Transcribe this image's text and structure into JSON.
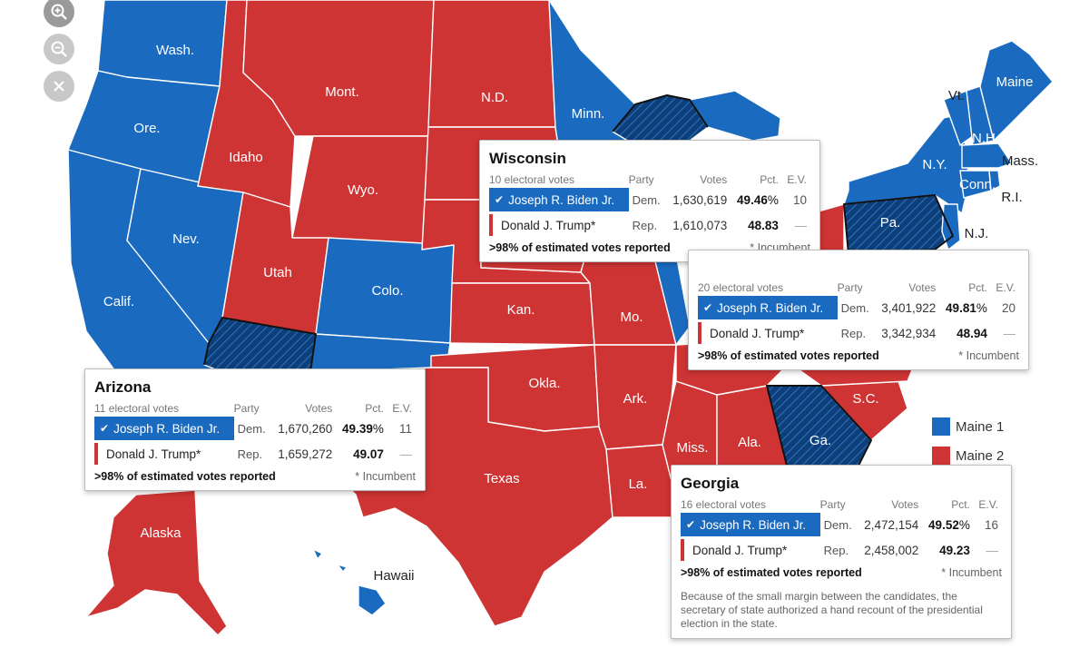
{
  "map": {
    "colors": {
      "dem": "#1a6bbf",
      "rep": "#cf3434",
      "flipped_dem": "#0d3f7a",
      "label": "#ffffff"
    },
    "state_labels": [
      "Wash.",
      "Ore.",
      "Calif.",
      "Nev.",
      "Idaho",
      "Mont.",
      "Wyo.",
      "Utah",
      "Colo.",
      "N.D.",
      "Minn.",
      "Kan.",
      "Mo.",
      "Okla.",
      "Ark.",
      "Texas",
      "La.",
      "Miss.",
      "Ala.",
      "Ga.",
      "S.C.",
      "Alaska",
      "Hawaii",
      "Pa.",
      "N.Y.",
      "Vt.",
      "Maine",
      "N.H.",
      "Mass.",
      "Conn.",
      "R.I.",
      "N.J."
    ],
    "icons": [
      "zoom-in-icon",
      "zoom-out-icon",
      "close-icon",
      "check-icon"
    ]
  },
  "legend": [
    {
      "label": "Maine 1",
      "color": "#1a6bbf"
    },
    {
      "label": "Maine 2",
      "color": "#cf3434"
    }
  ],
  "columns": {
    "party": "Party",
    "votes": "Votes",
    "pct": "Pct.",
    "ev": "E.V."
  },
  "popups": {
    "wisconsin": {
      "title": "Wisconsin",
      "ev_label": "10 electoral votes",
      "rows": [
        {
          "candidate": "Joseph R. Biden Jr.",
          "party": "Dem.",
          "votes": "1,630,619",
          "pct": "49.46",
          "pct_suffix": "%",
          "ev": "10"
        },
        {
          "candidate": "Donald J. Trump*",
          "party": "Rep.",
          "votes": "1,610,073",
          "pct": "48.83",
          "pct_suffix": "",
          "ev": "—"
        }
      ],
      "reported": ">98% of estimated votes reported",
      "incumbent": "* Incumbent"
    },
    "pennsylvania": {
      "title": "",
      "ev_label": "20 electoral votes",
      "rows": [
        {
          "candidate": "Joseph R. Biden Jr.",
          "party": "Dem.",
          "votes": "3,401,922",
          "pct": "49.81",
          "pct_suffix": "%",
          "ev": "20"
        },
        {
          "candidate": "Donald J. Trump*",
          "party": "Rep.",
          "votes": "3,342,934",
          "pct": "48.94",
          "pct_suffix": "",
          "ev": "—"
        }
      ],
      "reported": ">98% of estimated votes reported",
      "incumbent": "* Incumbent"
    },
    "arizona": {
      "title": "Arizona",
      "ev_label": "11 electoral votes",
      "rows": [
        {
          "candidate": "Joseph R. Biden Jr.",
          "party": "Dem.",
          "votes": "1,670,260",
          "pct": "49.39",
          "pct_suffix": "%",
          "ev": "11"
        },
        {
          "candidate": "Donald J. Trump*",
          "party": "Rep.",
          "votes": "1,659,272",
          "pct": "49.07",
          "pct_suffix": "",
          "ev": "—"
        }
      ],
      "reported": ">98% of estimated votes reported",
      "incumbent": "* Incumbent"
    },
    "georgia": {
      "title": "Georgia",
      "ev_label": "16 electoral votes",
      "rows": [
        {
          "candidate": "Joseph R. Biden Jr.",
          "party": "Dem.",
          "votes": "2,472,154",
          "pct": "49.52",
          "pct_suffix": "%",
          "ev": "16"
        },
        {
          "candidate": "Donald J. Trump*",
          "party": "Rep.",
          "votes": "2,458,002",
          "pct": "49.23",
          "pct_suffix": "",
          "ev": "—"
        }
      ],
      "reported": ">98% of estimated votes reported",
      "incumbent": "* Incumbent",
      "note": "Because of the small margin between the candidates, the secretary of state authorized a hand recount of the presidential election in the state."
    }
  }
}
